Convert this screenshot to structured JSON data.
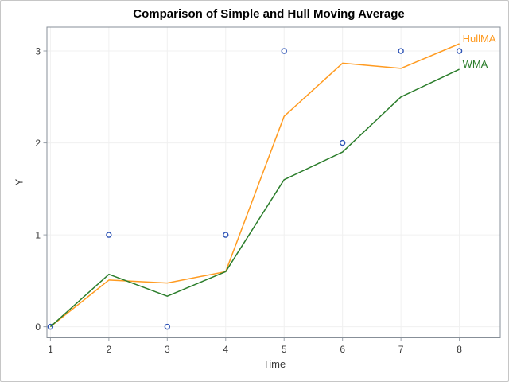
{
  "figure": {
    "background": "#ffffff",
    "border_color": "#c6c6c6",
    "frame_color": "#878f98",
    "grid_color": "#f0f0f0",
    "tick_color": "#9aa2ab",
    "text_color": "#3a3a3a",
    "title_color": "#000000"
  },
  "chart_data": {
    "type": "line",
    "title": "Comparison of Simple and Hull Moving Average",
    "xlabel": "Time",
    "ylabel": "Y",
    "x": [
      1,
      2,
      3,
      4,
      5,
      6,
      7,
      8
    ],
    "x_ticks": [
      "1",
      "2",
      "3",
      "4",
      "5",
      "6",
      "7",
      "8"
    ],
    "y_ticks": [
      "0",
      "1",
      "2",
      "3"
    ],
    "x_tick_values": [
      1,
      2,
      3,
      4,
      5,
      6,
      7,
      8
    ],
    "y_tick_values": [
      0,
      1,
      2,
      3
    ],
    "xlim": [
      0.94,
      8.7
    ],
    "ylim": [
      -0.12,
      3.26
    ],
    "grid": true,
    "legend_position": "end-of-line-labels",
    "scatter": {
      "name": "Y",
      "values": [
        0,
        1,
        0,
        1,
        3,
        2,
        3,
        3
      ],
      "marker": "open-circle",
      "color": "#2d53b5"
    },
    "series": [
      {
        "name": "HullMA",
        "values": [
          0,
          0.508,
          0.476,
          0.6,
          2.289,
          2.867,
          2.811,
          3.078
        ],
        "color": "#ff9b21"
      },
      {
        "name": "WMA",
        "values": [
          0,
          0.571,
          0.333,
          0.6,
          1.6,
          1.9,
          2.5,
          2.8
        ],
        "color": "#2b7d2b"
      }
    ]
  }
}
